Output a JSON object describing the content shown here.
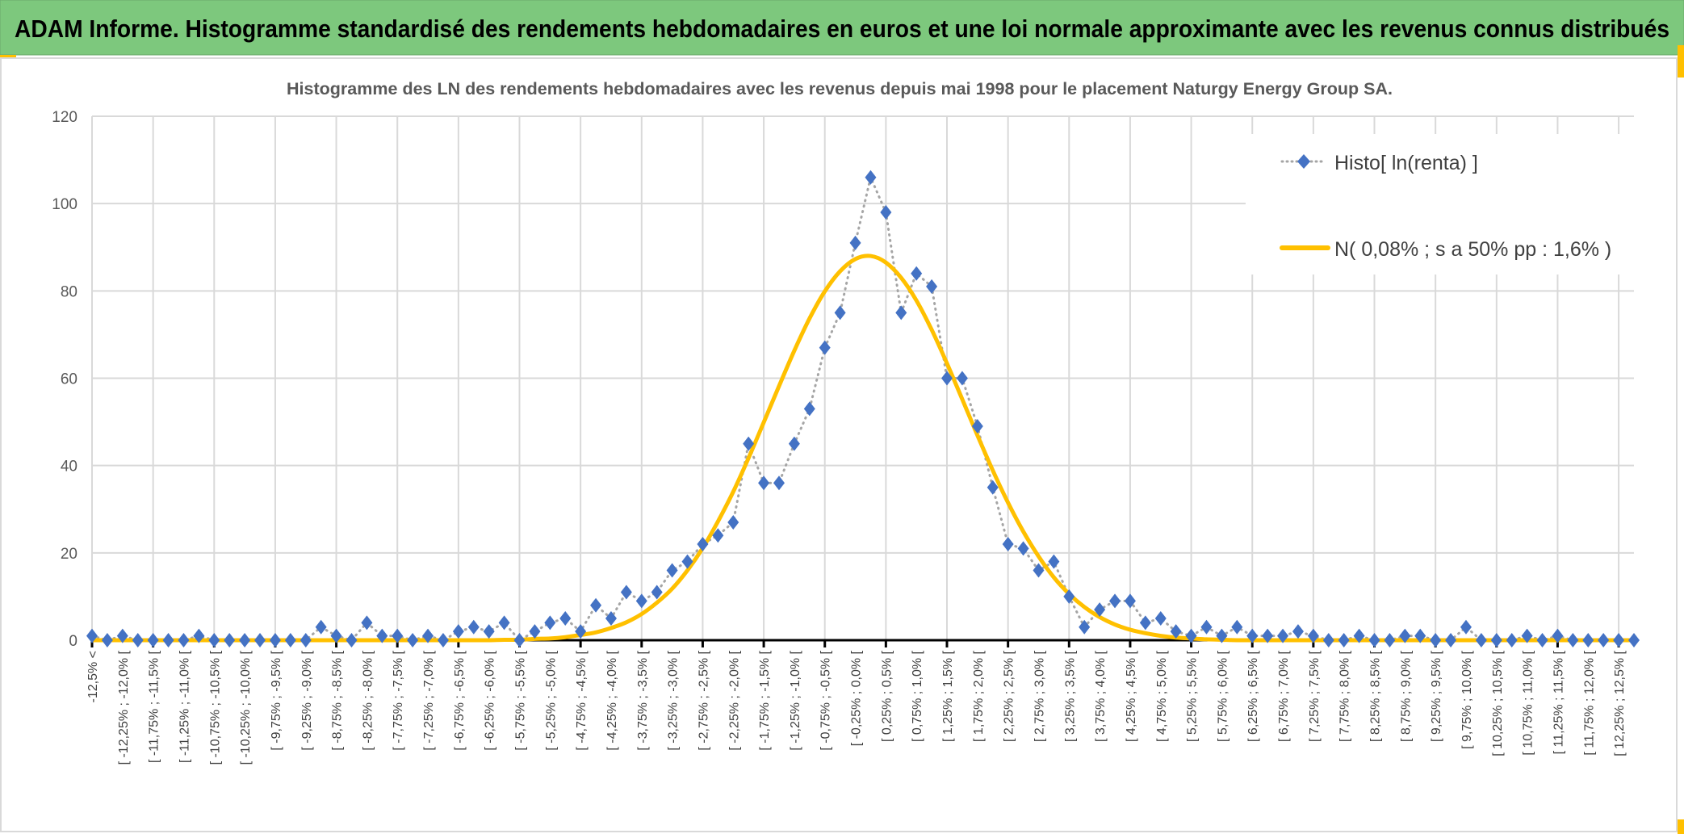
{
  "header": {
    "title": "ADAM Informe. Histogramme standardisé des rendements hebdomadaires en euros et une loi normale approximante avec les revenus connus distribués",
    "background_color": "#7dc87d",
    "accent_color": "#ffc000"
  },
  "chart_data": {
    "type": "line",
    "title": "Histogramme des LN des rendements hebdomadaires avec les revenus depuis mai 1998 pour le placement Naturgy Energy Group SA.",
    "xlabel": "",
    "ylabel": "",
    "ylim": [
      0,
      120
    ],
    "y_ticks": [
      "0",
      "20",
      "40",
      "60",
      "80",
      "100",
      "120"
    ],
    "grid": true,
    "legend_position": "top-right",
    "x_tick_labels": [
      "-12,5% <",
      "[ -12,25% ; -12,0% [",
      "[ -11,75% ; -11,5% [",
      "[ -11,25% ; -11,0% [",
      "[ -10,75% ; -10,5% [",
      "[ -10,25% ; -10,0% [",
      "[ -9,75% ; -9,5% [",
      "[ -9,25% ; -9,0% [",
      "[ -8,75% ; -8,5% [",
      "[ -8,25% ; -8,0% [",
      "[ -7,75% ; -7,5% [",
      "[ -7,25% ; -7,0% [",
      "[ -6,75% ; -6,5% [",
      "[ -6,25% ; -6,0% [",
      "[ -5,75% ; -5,5% [",
      "[ -5,25% ; -5,0% [",
      "[ -4,75% ; -4,5% [",
      "[ -4,25% ; -4,0% [",
      "[ -3,75% ; -3,5% [",
      "[ -3,25% ; -3,0% [",
      "[ -2,75% ; -2,5% [",
      "[ -2,25% ; -2,0% [",
      "[ -1,75% ; -1,5% [",
      "[ -1,25% ; -1,0% [",
      "[ -0,75% ; -0,5% [",
      "[ -0,25% ; 0,0% [",
      "[ 0,25% ; 0,5% [",
      "[ 0,75% ; 1,0% [",
      "[ 1,25% ; 1,5% [",
      "[ 1,75% ; 2,0% [",
      "[ 2,25% ; 2,5% [",
      "[ 2,75% ; 3,0% [",
      "[ 3,25% ; 3,5% [",
      "[ 3,75% ; 4,0% [",
      "[ 4,25% ; 4,5% [",
      "[ 4,75% ; 5,0% [",
      "[ 5,25% ; 5,5% [",
      "[ 5,75% ; 6,0% [",
      "[ 6,25% ; 6,5% [",
      "[ 6,75% ; 7,0% [",
      "[ 7,25% ; 7,5% [",
      "[ 7,75% ; 8,0% [",
      "[ 8,25% ; 8,5% [",
      "[ 8,75% ; 9,0% [",
      "[ 9,25% ; 9,5% [",
      "[ 9,75% ; 10,0% [",
      "[ 10,25% ; 10,5% [",
      "[ 10,75% ; 11,0% [",
      "[ 11,25% ; 11,5% [",
      "[ 11,75% ; 12,0% [",
      "[ 12,25% ; 12,5% ["
    ],
    "series": [
      {
        "name": "Histo[ ln(renta) ]",
        "style": "dotted line with diamond markers",
        "color": "#4472c4",
        "line_color": "#a5a5a5",
        "values": [
          1,
          0,
          1,
          0,
          0,
          0,
          0,
          1,
          0,
          0,
          0,
          0,
          0,
          0,
          0,
          3,
          1,
          0,
          4,
          1,
          1,
          0,
          1,
          0,
          2,
          3,
          2,
          4,
          0,
          2,
          4,
          5,
          2,
          8,
          5,
          11,
          9,
          11,
          16,
          18,
          22,
          24,
          27,
          45,
          36,
          36,
          45,
          53,
          67,
          75,
          91,
          106,
          98,
          75,
          84,
          81,
          60,
          60,
          49,
          35,
          22,
          21,
          16,
          18,
          10,
          3,
          7,
          9,
          9,
          4,
          5,
          2,
          1,
          3,
          1,
          3,
          1,
          1,
          1,
          2,
          1,
          0,
          0,
          1,
          0,
          0,
          1,
          1,
          0,
          0,
          3,
          0,
          0,
          0,
          1,
          0,
          1,
          0,
          0,
          0,
          0,
          0
        ]
      },
      {
        "name": "N( 0,08% ; s a 50% pp : 1,6% )",
        "style": "solid line",
        "color": "#ffc000",
        "values": [
          0,
          0,
          0,
          0,
          0,
          0,
          0,
          0,
          0,
          0,
          0,
          0,
          0,
          0,
          0,
          0,
          0,
          0,
          0,
          0,
          0,
          0,
          0,
          0,
          0,
          0,
          0,
          0.1,
          0.1,
          0.3,
          0.4,
          0.7,
          1.2,
          1.8,
          2.8,
          4.1,
          6.0,
          8.6,
          11.8,
          16.0,
          21.1,
          27.2,
          34.0,
          41.7,
          49.9,
          58.2,
          66.3,
          73.7,
          79.9,
          84.5,
          87.3,
          88.0,
          86.5,
          83.0,
          77.8,
          71.1,
          63.4,
          55.2,
          46.9,
          38.9,
          31.5,
          24.9,
          19.2,
          14.4,
          10.6,
          7.6,
          5.3,
          3.6,
          2.4,
          1.6,
          1.0,
          0.6,
          0.4,
          0.2,
          0.1,
          0,
          0,
          0,
          0,
          0,
          0,
          0,
          0,
          0,
          0,
          0,
          0,
          0,
          0,
          0,
          0,
          0,
          0,
          0,
          0,
          0,
          0,
          0,
          0,
          0,
          0,
          0
        ]
      }
    ]
  }
}
